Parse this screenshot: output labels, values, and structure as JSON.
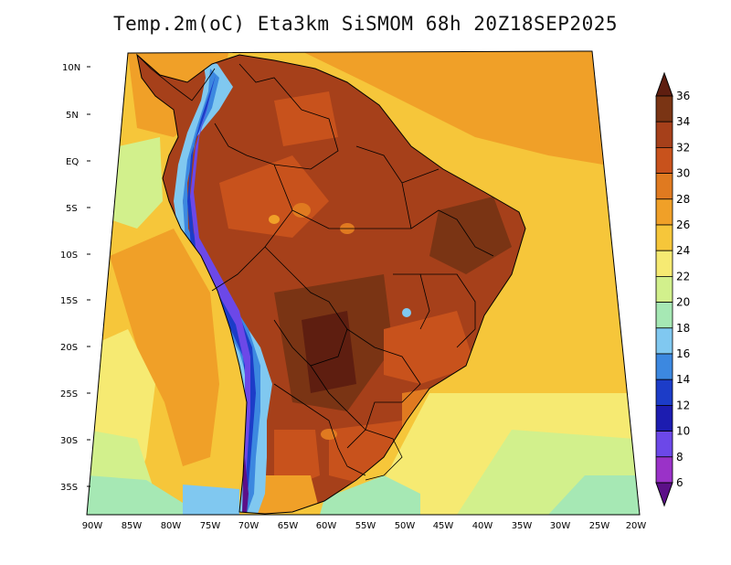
{
  "title": "Temp.2m(oC) Eta3km SiSMOM 68h 20Z18SEP2025",
  "map": {
    "lat_labels": [
      "10N",
      "5N",
      "EQ",
      "5S",
      "10S",
      "15S",
      "20S",
      "25S",
      "30S",
      "35S"
    ],
    "lon_labels": [
      "90W",
      "85W",
      "80W",
      "75W",
      "70W",
      "65W",
      "60W",
      "55W",
      "50W",
      "45W",
      "40W",
      "35W",
      "30W",
      "25W",
      "20W"
    ],
    "extent": {
      "lon_min": -91,
      "lon_max": -20,
      "lat_min": -38,
      "lat_max": 12
    }
  },
  "colorbar": {
    "labels": [
      "36",
      "34",
      "32",
      "30",
      "28",
      "26",
      "24",
      "22",
      "20",
      "18",
      "16",
      "14",
      "12",
      "10",
      "8",
      "6"
    ],
    "colors": [
      "#5e1e10",
      "#7a3414",
      "#a6401a",
      "#c8521c",
      "#e07a20",
      "#f0a028",
      "#f6c63a",
      "#f6ea72",
      "#d2f08c",
      "#a6e8b4",
      "#80c8f0",
      "#3c88e0",
      "#1c3cc8",
      "#1c1cb0",
      "#6c48e8",
      "#9a32c8",
      "#5c1088"
    ]
  }
}
